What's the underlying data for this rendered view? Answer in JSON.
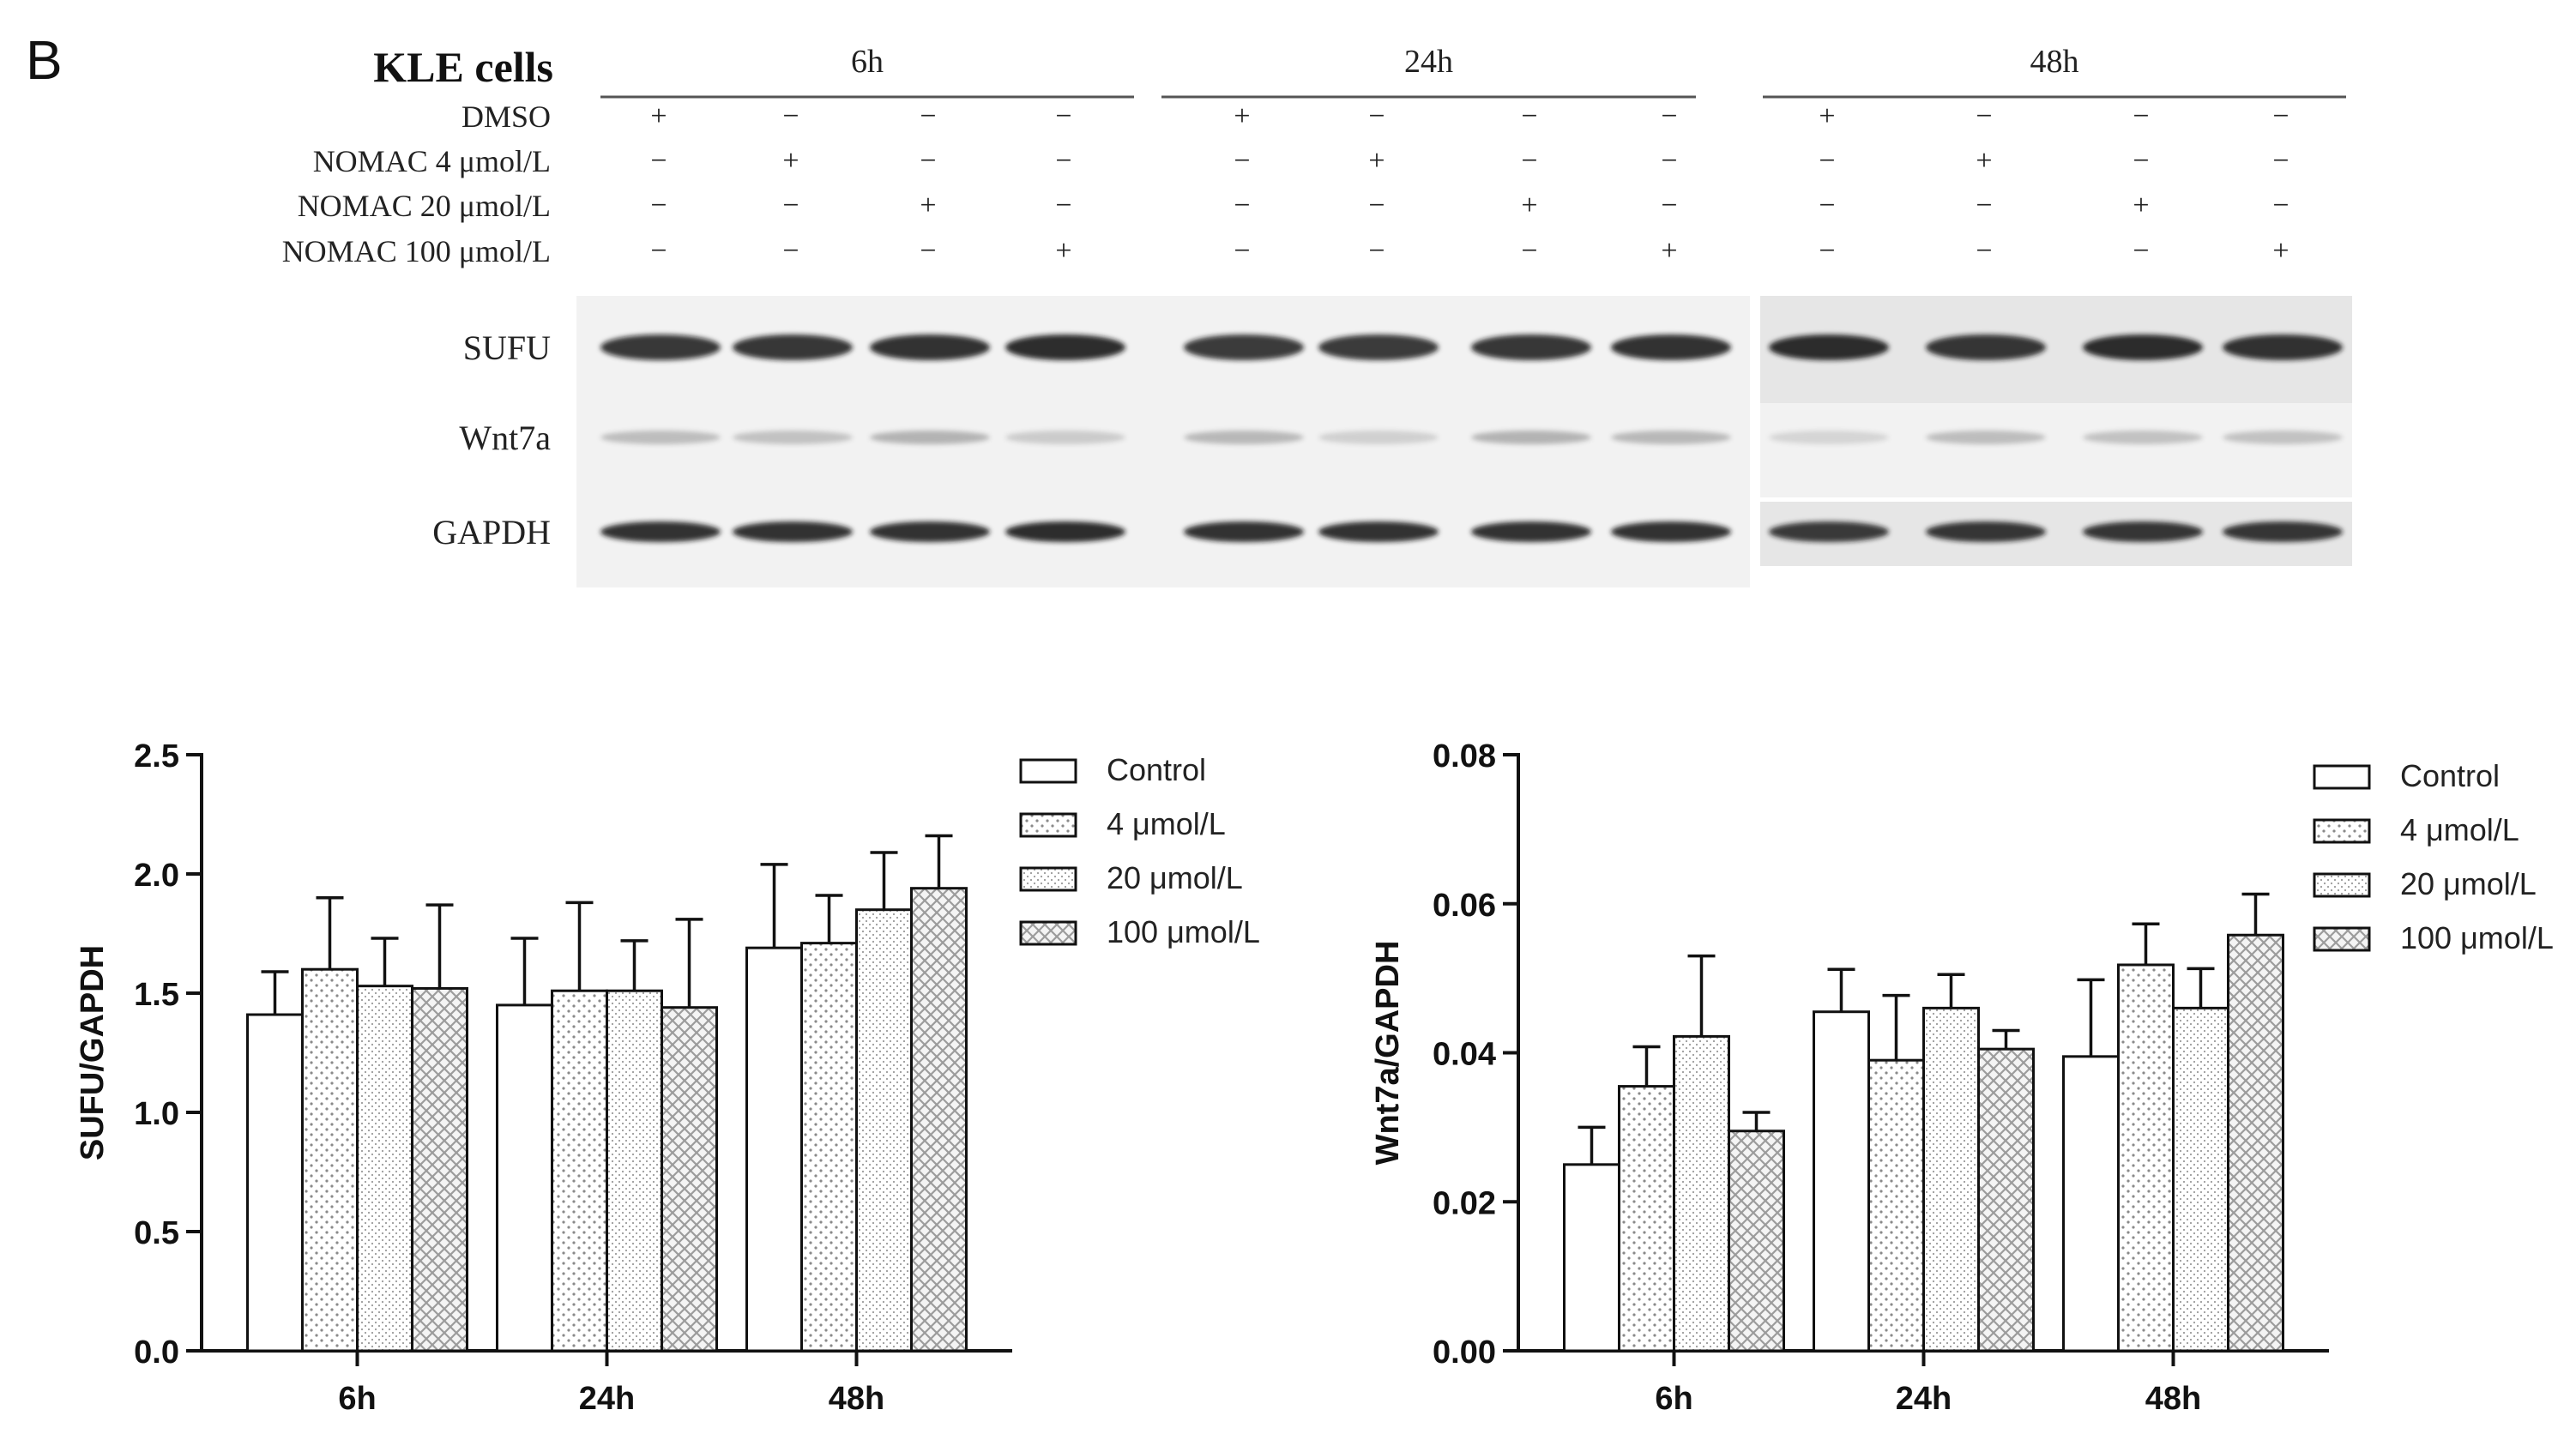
{
  "panel": {
    "letter": "B"
  },
  "blot": {
    "cell_line": "KLE cells",
    "time_groups": [
      "6h",
      "24h",
      "48h"
    ],
    "treatments": [
      "DMSO",
      "NOMAC 4 μmol/L",
      "NOMAC 20 μmol/L",
      "NOMAC 100 μmol/L"
    ],
    "plus_sign": "+",
    "minus_sign": "−",
    "proteins": [
      "SUFU",
      "Wnt7a",
      "GAPDH"
    ],
    "band_intensity": {
      "SUFU": [
        0.82,
        0.86,
        0.88,
        0.9,
        0.84,
        0.84,
        0.86,
        0.88,
        0.9,
        0.86,
        0.9,
        0.88
      ],
      "Wnt7a": [
        0.22,
        0.2,
        0.26,
        0.16,
        0.24,
        0.14,
        0.26,
        0.24,
        0.12,
        0.22,
        0.2,
        0.2
      ],
      "GAPDH": [
        0.88,
        0.88,
        0.88,
        0.9,
        0.88,
        0.88,
        0.88,
        0.88,
        0.84,
        0.86,
        0.86,
        0.86
      ]
    },
    "colors": {
      "band": "#141414",
      "background_light": "#f2f2f2",
      "background_dark": "#e6e6e6",
      "rule": "#555555"
    }
  },
  "legend_labels": [
    "Control",
    "4 μmol/L",
    "20 μmol/L",
    "100 μmol/L"
  ],
  "chart_data": [
    {
      "type": "bar",
      "categories": [
        "6h",
        "24h",
        "48h"
      ],
      "ylabel": "SUFU/GAPDH",
      "ylim": [
        0,
        2.5
      ],
      "yticks": [
        "0.0",
        "0.5",
        "1.0",
        "1.5",
        "2.0",
        "2.5"
      ],
      "yticks_values": [
        0,
        0.5,
        1.0,
        1.5,
        2.0,
        2.5
      ],
      "legend_placement": "top-right",
      "grid": false,
      "series": [
        {
          "name": "Control",
          "pattern": "none",
          "values": [
            1.41,
            1.45,
            1.69
          ],
          "errors": [
            0.18,
            0.28,
            0.35
          ]
        },
        {
          "name": "4 μmol/L",
          "pattern": "dots",
          "values": [
            1.6,
            1.51,
            1.71
          ],
          "errors": [
            0.3,
            0.37,
            0.2
          ]
        },
        {
          "name": "20 μmol/L",
          "pattern": "fine-dots",
          "values": [
            1.53,
            1.51,
            1.85
          ],
          "errors": [
            0.2,
            0.21,
            0.24
          ]
        },
        {
          "name": "100 μmol/L",
          "pattern": "crosshatch",
          "values": [
            1.52,
            1.44,
            1.94
          ],
          "errors": [
            0.35,
            0.37,
            0.22
          ]
        }
      ]
    },
    {
      "type": "bar",
      "categories": [
        "6h",
        "24h",
        "48h"
      ],
      "ylabel": "Wnt7a/GAPDH",
      "ylim": [
        0,
        0.08
      ],
      "yticks": [
        "0.00",
        "0.02",
        "0.04",
        "0.06",
        "0.08"
      ],
      "yticks_values": [
        0,
        0.02,
        0.04,
        0.06,
        0.08
      ],
      "legend_placement": "top-right",
      "grid": false,
      "series": [
        {
          "name": "Control",
          "pattern": "none",
          "values": [
            0.025,
            0.0455,
            0.0395
          ],
          "errors": [
            0.005,
            0.0057,
            0.0103
          ]
        },
        {
          "name": "4 μmol/L",
          "pattern": "dots",
          "values": [
            0.0355,
            0.039,
            0.0518
          ],
          "errors": [
            0.0053,
            0.0087,
            0.0055
          ]
        },
        {
          "name": "20 μmol/L",
          "pattern": "fine-dots",
          "values": [
            0.0422,
            0.046,
            0.046
          ],
          "errors": [
            0.0108,
            0.0045,
            0.0053
          ]
        },
        {
          "name": "100 μmol/L",
          "pattern": "crosshatch",
          "values": [
            0.0295,
            0.0405,
            0.0558
          ],
          "errors": [
            0.0025,
            0.0025,
            0.0055
          ]
        }
      ]
    }
  ]
}
